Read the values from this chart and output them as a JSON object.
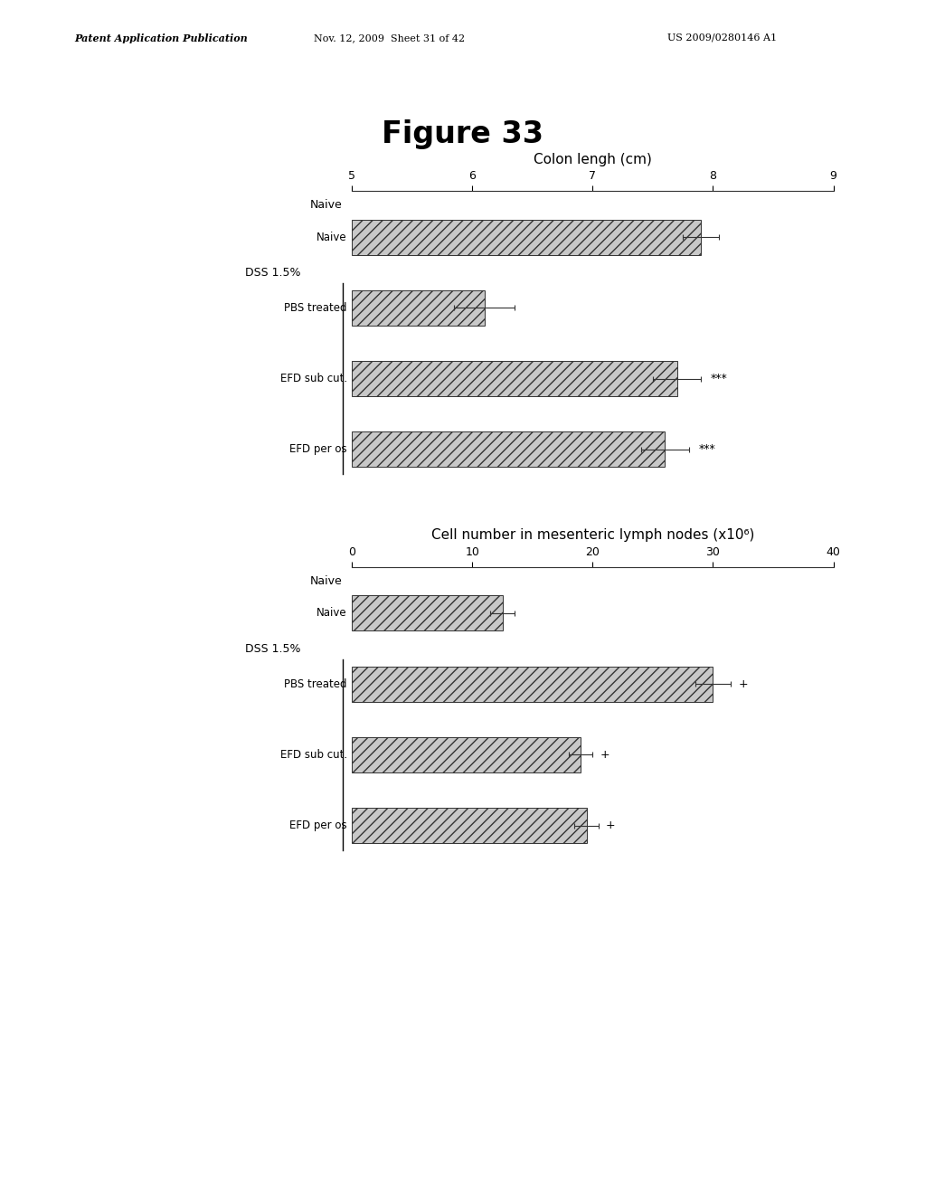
{
  "figure_title": "Figure 33",
  "figure_title_fontsize": 24,
  "figure_title_bold": true,
  "chart1": {
    "title": "Colon lengh (cm)",
    "title_fontsize": 11,
    "xlim": [
      5,
      9
    ],
    "xticks": [
      5,
      6,
      7,
      8,
      9
    ],
    "bars": [
      {
        "label": "Naive",
        "value": 7.9,
        "error": 0.15,
        "annotation": ""
      },
      {
        "label": "PBS treated",
        "value": 6.1,
        "error": 0.25,
        "annotation": ""
      },
      {
        "label": "EFD sub cut.",
        "value": 7.7,
        "error": 0.2,
        "annotation": "***"
      },
      {
        "label": "EFD per os",
        "value": 7.6,
        "error": 0.2,
        "annotation": "***"
      }
    ],
    "group_naive_label": "Naive",
    "group_dss_label": "DSS 1.5%",
    "bar_color": "#c8c8c8",
    "bar_height": 0.5,
    "annotation_fontsize": 9
  },
  "chart2": {
    "title": "Cell number in mesenteric lymph nodes (x10⁶)",
    "title_fontsize": 11,
    "xlim": [
      0,
      40
    ],
    "xticks": [
      0,
      10,
      20,
      30,
      40
    ],
    "bars": [
      {
        "label": "Naive",
        "value": 12.5,
        "error": 1.0,
        "annotation": ""
      },
      {
        "label": "PBS treated",
        "value": 30.0,
        "error": 1.5,
        "annotation": "+"
      },
      {
        "label": "EFD sub cut.",
        "value": 19.0,
        "error": 1.0,
        "annotation": "+"
      },
      {
        "label": "EFD per os",
        "value": 19.5,
        "error": 1.0,
        "annotation": "+"
      }
    ],
    "group_naive_label": "Naive",
    "group_dss_label": "DSS 1.5%",
    "bar_color": "#c8c8c8",
    "bar_height": 0.5,
    "annotation_fontsize": 9
  },
  "header_line1": "Patent Application Publication",
  "header_line2": "Nov. 12, 2009  Sheet 31 of 42",
  "header_line3": "US 2009/0280146 A1",
  "bg_color": "#ffffff",
  "text_color": "#000000"
}
